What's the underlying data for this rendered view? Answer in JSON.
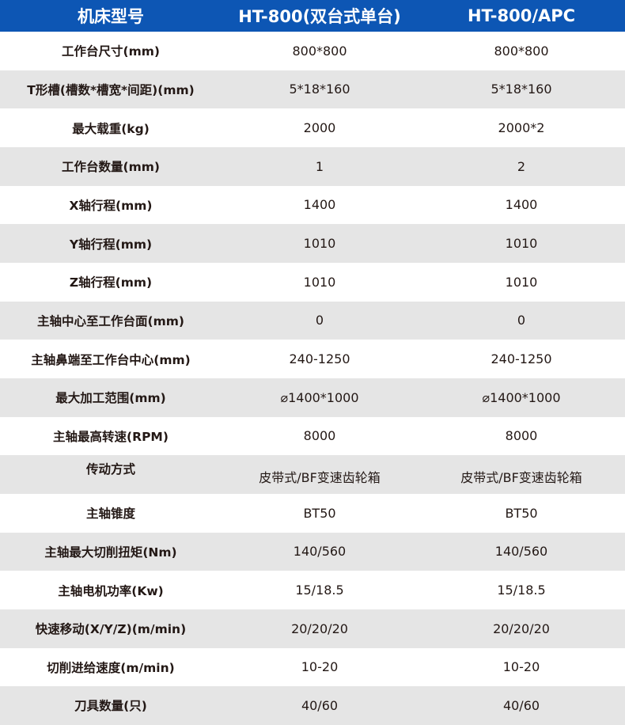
{
  "header": [
    "机床型号",
    "HT-800(双台式单台)",
    "HT-800/APC"
  ],
  "rows": [
    {
      "label": "工作台尺寸(mm)",
      "a": "800*800",
      "b": "800*800"
    },
    {
      "label": "T形槽(槽数*槽宽*间距)(mm)",
      "a": "5*18*160",
      "b": "5*18*160"
    },
    {
      "label": "最大载重(kg)",
      "a": "2000",
      "b": "2000*2"
    },
    {
      "label": "工作台数量(mm)",
      "a": "1",
      "b": "2"
    },
    {
      "label": "X轴行程(mm)",
      "a": "1400",
      "b": "1400"
    },
    {
      "label": "Y轴行程(mm)",
      "a": "1010",
      "b": "1010"
    },
    {
      "label": "Z轴行程(mm)",
      "a": "1010",
      "b": "1010"
    },
    {
      "label": "主轴中心至工作台面(mm)",
      "a": "0",
      "b": "0"
    },
    {
      "label": "主轴鼻端至工作台中心(mm)",
      "a": "240-1250",
      "b": "240-1250"
    },
    {
      "label": "最大加工范围(mm)",
      "a": "⌀1400*1000",
      "b": "⌀1400*1000"
    },
    {
      "label": "主轴最高转速(RPM)",
      "a": "8000",
      "b": "8000"
    },
    {
      "label": "传动方式",
      "a": "皮带式/BF变速齿轮箱",
      "b": "皮带式/BF变速齿轮箱"
    },
    {
      "label": "主轴锥度",
      "a": "BT50",
      "b": "BT50"
    },
    {
      "label": "主轴最大切削扭矩(Nm)",
      "a": "140/560",
      "b": "140/560"
    },
    {
      "label": "主轴电机功率(Kw)",
      "a": "15/18.5",
      "b": "15/18.5"
    },
    {
      "label": "快速移动(X/Y/Z)(m/min)",
      "a": "20/20/20",
      "b": "20/20/20"
    },
    {
      "label": "切削进给速度(m/min)",
      "a": "10-20",
      "b": "10-20"
    },
    {
      "label": "刀具数量(只)",
      "a": "40/60",
      "b": "40/60"
    }
  ],
  "colors": {
    "header_bg": "#0d56b4",
    "stripe": "#e5e5e5"
  }
}
